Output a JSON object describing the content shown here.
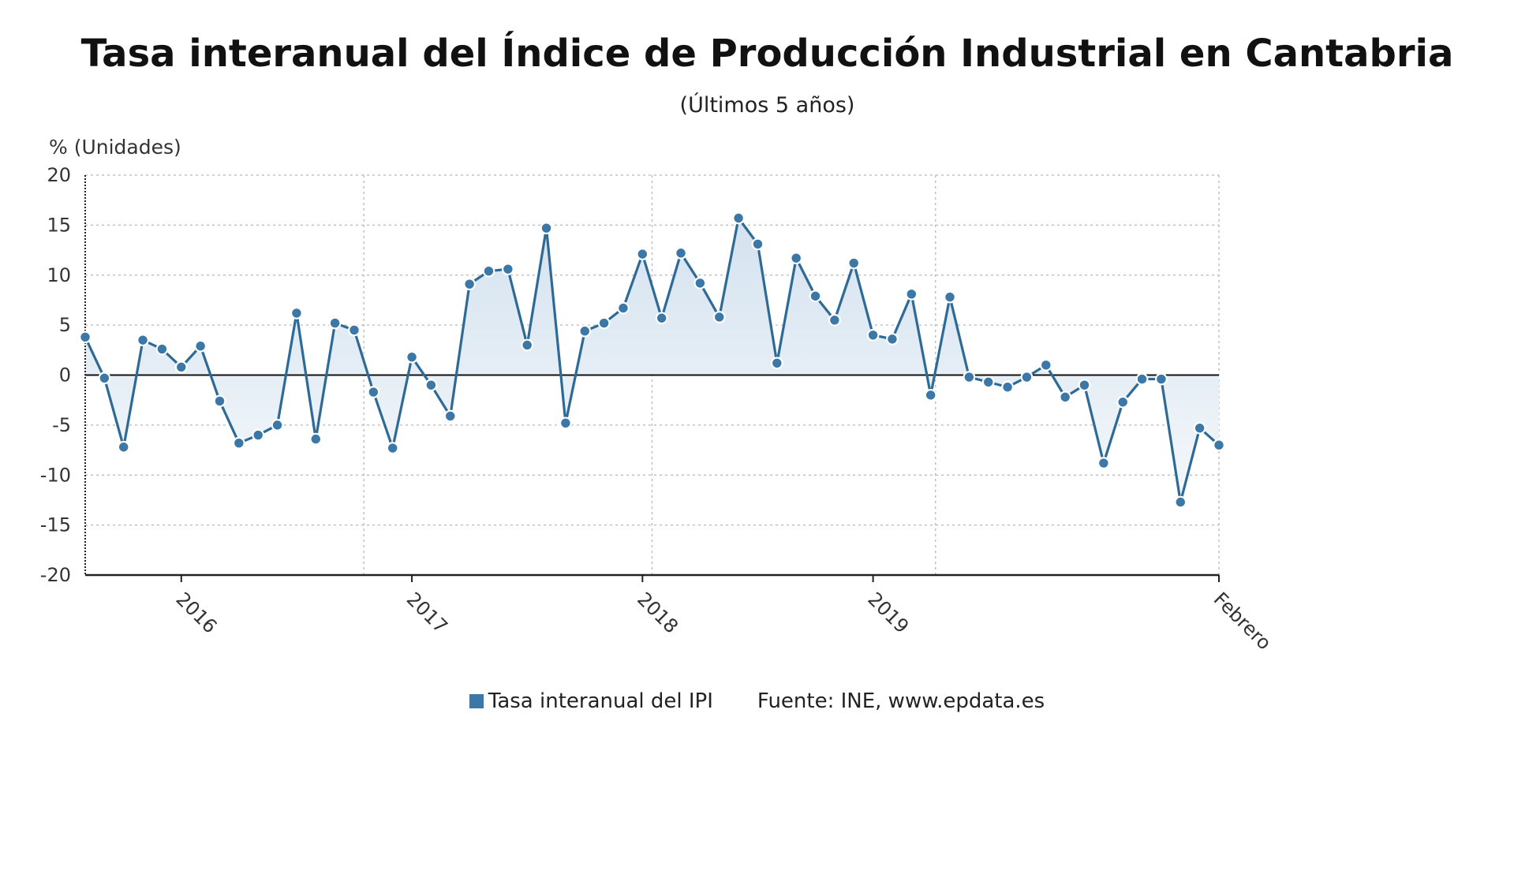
{
  "chart_data": {
    "type": "line",
    "title": "Tasa interanual del Índice de Producción Industrial en Cantabria",
    "subtitle": "(Últimos 5 años)",
    "ylabel": "% (Unidades)",
    "ylim": [
      -20,
      20
    ],
    "yticks": [
      20,
      15,
      10,
      5,
      0,
      -5,
      -10,
      -15,
      -20
    ],
    "ytick_labels": [
      "20",
      "15",
      "10",
      "5",
      "0",
      "-5",
      "-10",
      "-15",
      "-20"
    ],
    "xtick_labels": [
      "2016",
      "2017",
      "2018",
      "2019",
      "Febrero"
    ],
    "xtick_index": [
      5,
      17,
      29,
      41,
      59
    ],
    "year_gridline_index": [
      14.5,
      29.5,
      44.25
    ],
    "grid": true,
    "area_fill": true,
    "legend_position": "bottom",
    "series": [
      {
        "name": "Tasa interanual del IPI",
        "color": "#3b77a7",
        "values": [
          3.8,
          -0.3,
          -7.2,
          3.5,
          2.6,
          0.8,
          2.9,
          -2.6,
          -6.8,
          -6.0,
          -5.0,
          6.2,
          -6.4,
          5.2,
          4.5,
          -1.7,
          -7.3,
          1.8,
          -1.0,
          -4.1,
          9.1,
          10.4,
          10.6,
          3.0,
          14.7,
          -4.8,
          4.4,
          5.2,
          6.7,
          12.1,
          5.7,
          12.2,
          9.2,
          5.8,
          15.7,
          13.1,
          1.2,
          11.7,
          7.9,
          5.5,
          11.2,
          4.0,
          3.6,
          8.1,
          -2.0,
          7.8,
          -0.2,
          -0.7,
          -1.2,
          -0.2,
          1.0,
          -2.2,
          -1.0,
          -8.8,
          -2.7,
          -0.4,
          -0.4,
          -12.7,
          -5.3,
          -7.0
        ]
      }
    ],
    "source": "Fuente: INE, www.epdata.es",
    "colors": {
      "line": "#2e6a96",
      "marker_fill": "#3b77a7",
      "area_top": "#d4e2ef",
      "area_bottom": "#f4f8fb",
      "grid": "#b8b8b8",
      "zero_line": "#111111"
    }
  }
}
